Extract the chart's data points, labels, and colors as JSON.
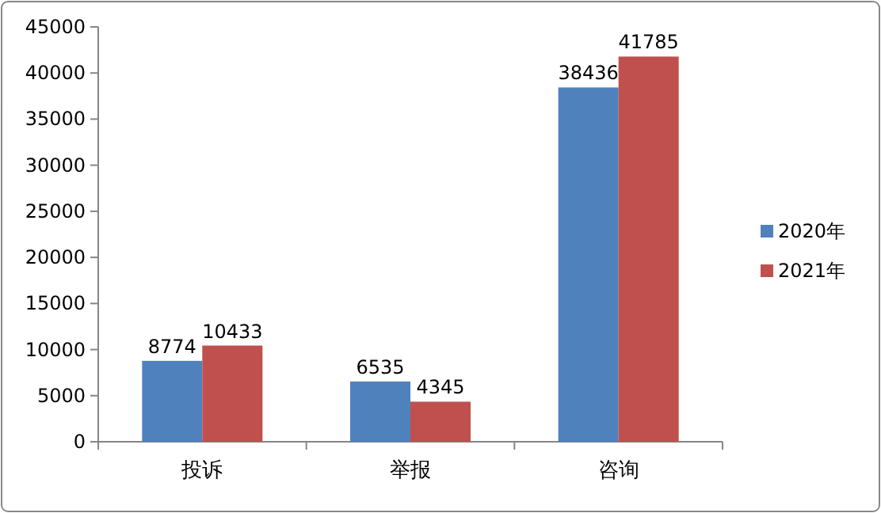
{
  "chart_data": {
    "type": "bar",
    "categories": [
      "投诉",
      "举报",
      "咨询"
    ],
    "series": [
      {
        "name": "2020年",
        "color": "#4f81bd",
        "values": [
          8774,
          6535,
          38436
        ]
      },
      {
        "name": "2021年",
        "color": "#c0504d",
        "values": [
          10433,
          4345,
          41785
        ]
      }
    ],
    "ylim": [
      0,
      45000
    ],
    "yticks": [
      0,
      5000,
      10000,
      15000,
      20000,
      25000,
      30000,
      35000,
      40000,
      45000
    ],
    "legend": "right",
    "data_labels": true
  }
}
